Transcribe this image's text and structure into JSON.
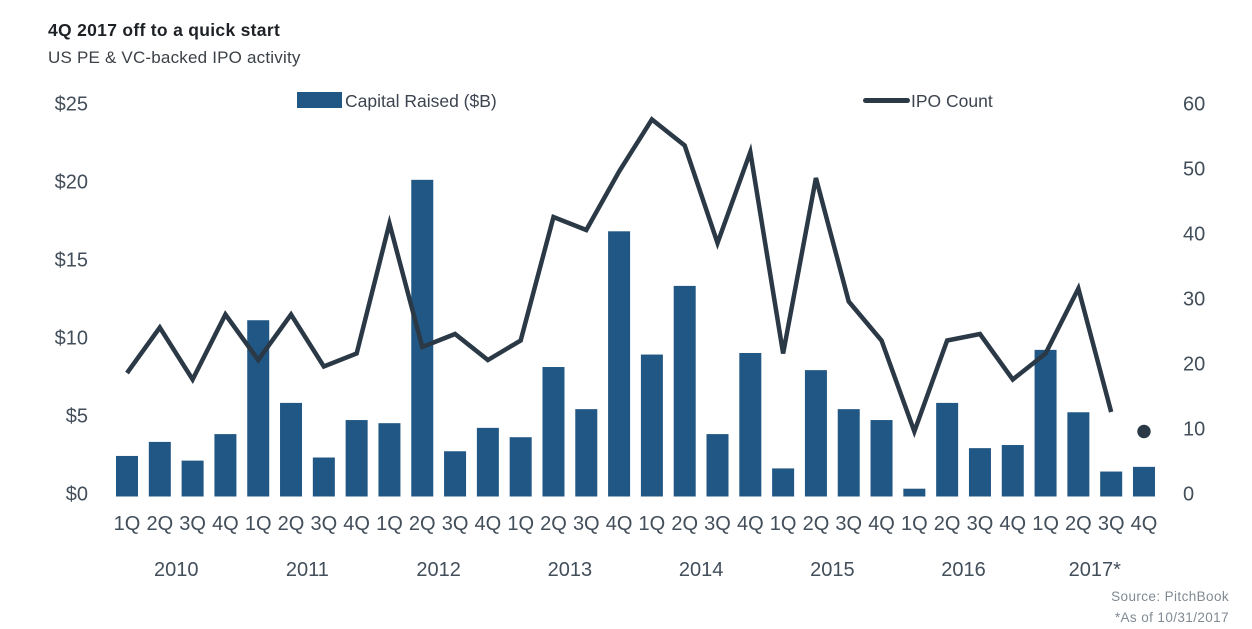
{
  "header": {
    "title": "4Q 2017 off to a quick start",
    "subtitle": "US PE & VC-backed IPO activity"
  },
  "legend": {
    "bar_label": "Capital Raised ($B)",
    "line_label": "IPO Count"
  },
  "footer": {
    "source": "Source: PitchBook",
    "as_of": "*As of 10/31/2017"
  },
  "colors": {
    "bar": "#215784",
    "line": "#2b3947",
    "axis_text": "#424e5a",
    "title_text": "#1d2125",
    "subtitle_text": "#3c4147",
    "source_text": "#808a93"
  },
  "chart_data": {
    "type": "bar",
    "subtype": "dual-axis bar + line",
    "title": "4Q 2017 off to a quick start",
    "subtitle": "US PE & VC-backed IPO activity",
    "grid": false,
    "legend_position": "top",
    "years": [
      {
        "label": "2010",
        "quarters": [
          "1Q",
          "2Q",
          "3Q",
          "4Q"
        ]
      },
      {
        "label": "2011",
        "quarters": [
          "1Q",
          "2Q",
          "3Q",
          "4Q"
        ]
      },
      {
        "label": "2012",
        "quarters": [
          "1Q",
          "2Q",
          "3Q",
          "4Q"
        ]
      },
      {
        "label": "2013",
        "quarters": [
          "1Q",
          "2Q",
          "3Q",
          "4Q"
        ]
      },
      {
        "label": "2014",
        "quarters": [
          "1Q",
          "2Q",
          "3Q",
          "4Q"
        ]
      },
      {
        "label": "2015",
        "quarters": [
          "1Q",
          "2Q",
          "3Q",
          "4Q"
        ]
      },
      {
        "label": "2016",
        "quarters": [
          "1Q",
          "2Q",
          "3Q",
          "4Q"
        ]
      },
      {
        "label": "2017*",
        "quarters": [
          "1Q",
          "2Q",
          "3Q",
          "4Q"
        ]
      }
    ],
    "categories": [
      "1Q 2010",
      "2Q 2010",
      "3Q 2010",
      "4Q 2010",
      "1Q 2011",
      "2Q 2011",
      "3Q 2011",
      "4Q 2011",
      "1Q 2012",
      "2Q 2012",
      "3Q 2012",
      "4Q 2012",
      "1Q 2013",
      "2Q 2013",
      "3Q 2013",
      "4Q 2013",
      "1Q 2014",
      "2Q 2014",
      "3Q 2014",
      "4Q 2014",
      "1Q 2015",
      "2Q 2015",
      "3Q 2015",
      "4Q 2015",
      "1Q 2016",
      "2Q 2016",
      "3Q 2016",
      "4Q 2016",
      "1Q 2017",
      "2Q 2017",
      "3Q 2017",
      "4Q 2017"
    ],
    "series": [
      {
        "name": "Capital Raised ($B)",
        "type": "bar",
        "axis": "left",
        "values": [
          2.6,
          3.5,
          2.3,
          4.0,
          11.3,
          6.0,
          2.5,
          4.9,
          4.7,
          20.3,
          2.9,
          4.4,
          3.8,
          8.3,
          5.6,
          17.0,
          9.1,
          13.5,
          4.0,
          9.2,
          1.8,
          8.1,
          5.6,
          4.9,
          0.5,
          6.0,
          3.1,
          3.3,
          9.4,
          5.4,
          1.6,
          1.9
        ]
      },
      {
        "name": "IPO Count",
        "type": "line",
        "axis": "right",
        "values": [
          19,
          26,
          18,
          28,
          21,
          28,
          20,
          22,
          42,
          23,
          25,
          21,
          24,
          43,
          41,
          50,
          58,
          54,
          39,
          53,
          22,
          49,
          30,
          24,
          10,
          24,
          25,
          18,
          22,
          32,
          13
        ],
        "partial_point": {
          "category": "4Q 2017",
          "value": 10,
          "style": "isolated-dot"
        }
      }
    ],
    "left_axis": {
      "tick_labels": [
        "$0",
        "$5",
        "$10",
        "$15",
        "$20",
        "$25"
      ],
      "tick_values": [
        0,
        5,
        10,
        15,
        20,
        25
      ],
      "range": [
        0,
        25
      ]
    },
    "right_axis": {
      "tick_labels": [
        "0",
        "10",
        "20",
        "30",
        "40",
        "50",
        "60"
      ],
      "tick_values": [
        0,
        10,
        20,
        30,
        40,
        50,
        60
      ],
      "range": [
        0,
        60
      ]
    }
  }
}
